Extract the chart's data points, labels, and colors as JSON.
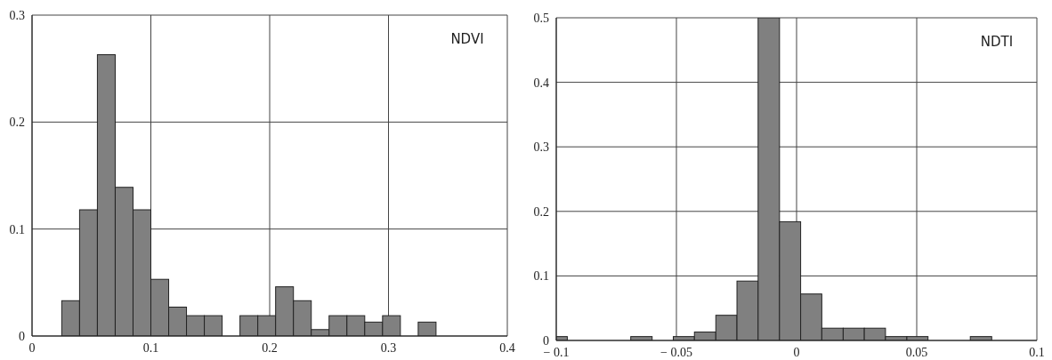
{
  "chart_data": [
    {
      "type": "histogram",
      "title": "NDVI",
      "color": "#808080",
      "bins": [
        0.025,
        0.04,
        0.055,
        0.07,
        0.085,
        0.1,
        0.115,
        0.13,
        0.145,
        0.16,
        0.175,
        0.19,
        0.205,
        0.22,
        0.235,
        0.25,
        0.265,
        0.28,
        0.295,
        0.31,
        0.325,
        0.34
      ],
      "values": [
        0.033,
        0.118,
        0.263,
        0.139,
        0.118,
        0.053,
        0.027,
        0.019,
        0.019,
        0,
        0.019,
        0.019,
        0.046,
        0.033,
        0.006,
        0.019,
        0.019,
        0.013,
        0.019,
        0,
        0.013
      ],
      "xlim": [
        0,
        0.4
      ],
      "xticks": [
        0,
        0.1,
        0.2,
        0.3,
        0.4
      ],
      "ylim": [
        0,
        0.3
      ],
      "yticks": [
        0,
        0.1,
        0.2,
        0.3
      ],
      "grid": true
    },
    {
      "type": "histogram",
      "title": "NDTI",
      "color": "#808080",
      "bins": [
        -0.1,
        -0.0954,
        -0.069,
        -0.0601,
        -0.0513,
        -0.0425,
        -0.0336,
        -0.0248,
        -0.016,
        -0.0071,
        0.0017,
        0.0105,
        0.0194,
        0.0282,
        0.037,
        0.0459,
        0.0547,
        0.0723,
        0.0812
      ],
      "values": [
        0.006,
        0,
        0.006,
        0,
        0.006,
        0.013,
        0.039,
        0.092,
        0.5,
        0.184,
        0.072,
        0.019,
        0.019,
        0.019,
        0.006,
        0.006,
        0,
        0.006
      ],
      "xlim": [
        -0.1,
        0.1
      ],
      "xticks": [
        -0.1,
        -0.05,
        0,
        0.05,
        0.1
      ],
      "ylim": [
        0,
        0.5
      ],
      "yticks": [
        0,
        0.1,
        0.2,
        0.3,
        0.4,
        0.5
      ],
      "grid": true
    }
  ]
}
